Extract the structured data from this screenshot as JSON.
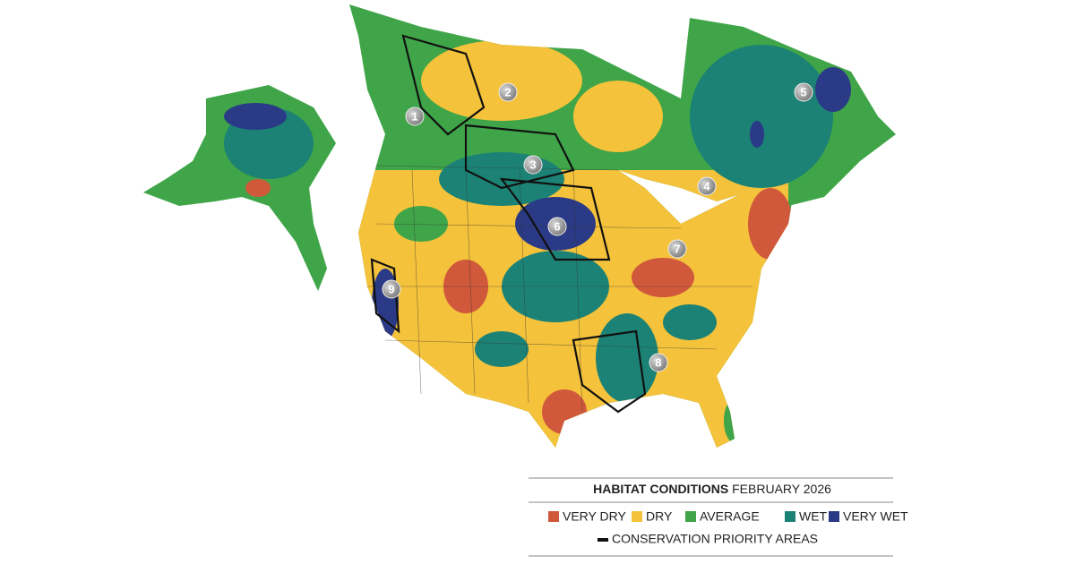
{
  "legend": {
    "title_bold": "HABITAT CONDITIONS",
    "title_rest": "FEBRUARY 2026",
    "items": [
      {
        "label": "VERY DRY",
        "color": "#d0593b"
      },
      {
        "label": "DRY",
        "color": "#f5c23b"
      },
      {
        "label": "AVERAGE",
        "color": "#3fa548"
      },
      {
        "label": "WET",
        "color": "#1c8275"
      },
      {
        "label": "VERY WET",
        "color": "#2b3a86"
      }
    ],
    "priority_label": "CONSERVATION PRIORITY AREAS"
  },
  "markers": [
    {
      "label": "1"
    },
    {
      "label": "2"
    },
    {
      "label": "3"
    },
    {
      "label": "4"
    },
    {
      "label": "5"
    },
    {
      "label": "6"
    },
    {
      "label": "7"
    },
    {
      "label": "8"
    },
    {
      "label": "9"
    }
  ]
}
